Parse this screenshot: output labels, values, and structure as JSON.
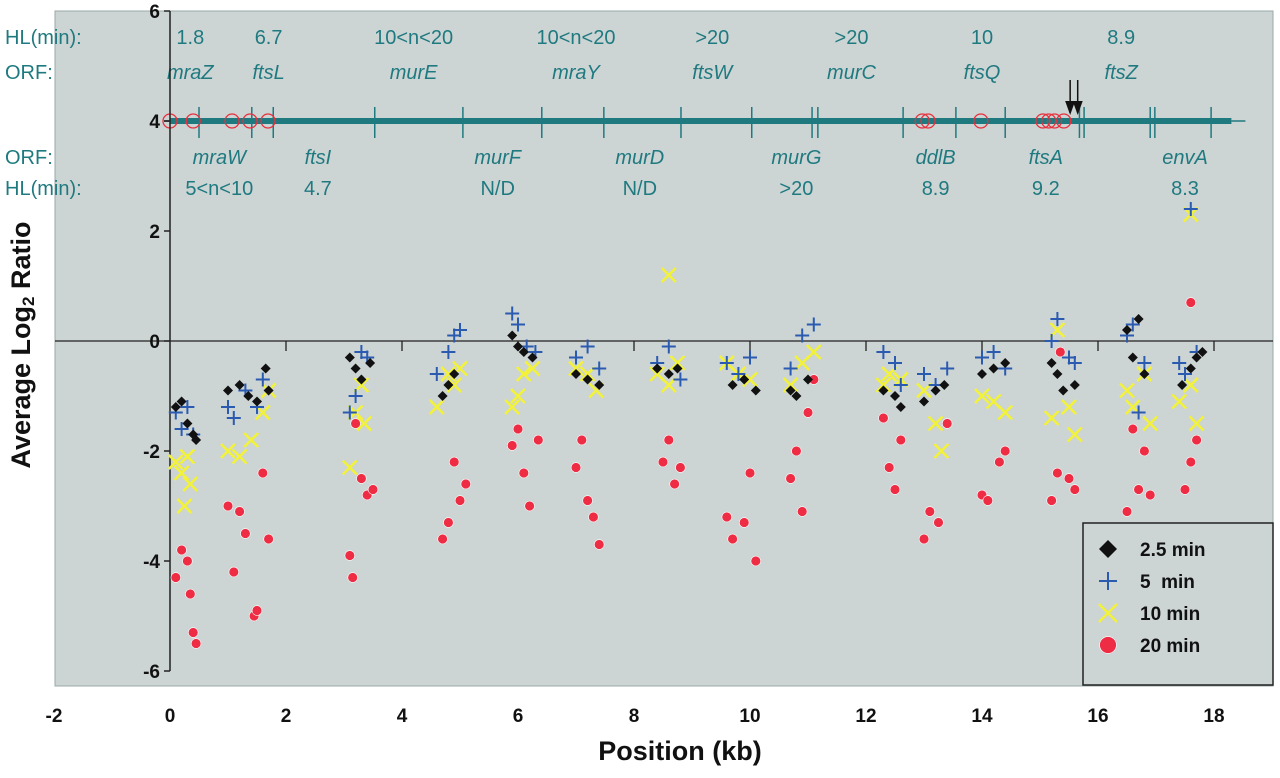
{
  "chart_data": {
    "type": "scatter",
    "xlabel": "Position (kb)",
    "ylabel": "Average Log",
    "ylabel_sub": "2",
    "ylabel_end": " Ratio",
    "xlim": [
      -2,
      18
    ],
    "ylim": [
      -6,
      6
    ],
    "xticks": [
      "-2",
      "0",
      "2",
      "4",
      "6",
      "8",
      "10",
      "12",
      "14",
      "16",
      "18"
    ],
    "xtick_values": [
      -2,
      0,
      2,
      4,
      6,
      8,
      10,
      12,
      14,
      16,
      18
    ],
    "yticks": [
      "-6",
      "-4",
      "-2",
      "0",
      "2",
      "4",
      "6"
    ],
    "ytick_values": [
      -6,
      -4,
      -2,
      0,
      2,
      4,
      6
    ],
    "grid": false,
    "legend_position": "bottom-right",
    "background": "#cdd4d4",
    "series": [
      {
        "name": "2.5 min",
        "marker": "diamond",
        "color": "#111111",
        "points": [
          [
            0.1,
            -1.2
          ],
          [
            0.2,
            -1.1
          ],
          [
            0.3,
            -1.5
          ],
          [
            0.4,
            -1.7
          ],
          [
            0.45,
            -1.8
          ],
          [
            1.0,
            -0.9
          ],
          [
            1.2,
            -0.8
          ],
          [
            1.35,
            -1.0
          ],
          [
            1.5,
            -1.1
          ],
          [
            1.65,
            -0.5
          ],
          [
            1.7,
            -0.9
          ],
          [
            3.1,
            -0.3
          ],
          [
            3.2,
            -0.5
          ],
          [
            3.3,
            -0.7
          ],
          [
            3.45,
            -0.4
          ],
          [
            4.7,
            -1.0
          ],
          [
            4.8,
            -0.8
          ],
          [
            4.9,
            -0.6
          ],
          [
            5.9,
            0.1
          ],
          [
            6.0,
            -0.1
          ],
          [
            6.1,
            -0.2
          ],
          [
            6.25,
            -0.3
          ],
          [
            7.0,
            -0.6
          ],
          [
            7.2,
            -0.7
          ],
          [
            7.4,
            -0.8
          ],
          [
            8.4,
            -0.5
          ],
          [
            8.6,
            -0.6
          ],
          [
            8.75,
            -0.5
          ],
          [
            9.7,
            -0.8
          ],
          [
            9.9,
            -0.7
          ],
          [
            10.1,
            -0.9
          ],
          [
            10.7,
            -0.9
          ],
          [
            10.8,
            -1.0
          ],
          [
            11.0,
            -0.7
          ],
          [
            12.3,
            -0.9
          ],
          [
            12.5,
            -1.0
          ],
          [
            12.6,
            -1.2
          ],
          [
            13.0,
            -1.1
          ],
          [
            13.2,
            -0.9
          ],
          [
            13.35,
            -0.8
          ],
          [
            14.0,
            -0.6
          ],
          [
            14.2,
            -0.5
          ],
          [
            14.4,
            -0.4
          ],
          [
            15.2,
            -0.4
          ],
          [
            15.3,
            -0.6
          ],
          [
            15.4,
            -0.9
          ],
          [
            15.6,
            -0.8
          ],
          [
            16.5,
            0.2
          ],
          [
            16.6,
            -0.3
          ],
          [
            16.7,
            0.4
          ],
          [
            16.8,
            -0.6
          ],
          [
            17.45,
            -0.8
          ],
          [
            17.6,
            -0.5
          ],
          [
            17.7,
            -0.3
          ],
          [
            17.8,
            -0.2
          ]
        ]
      },
      {
        "name": "5  min",
        "marker": "plus",
        "color": "#2b5bb0",
        "points": [
          [
            0.1,
            -1.3
          ],
          [
            0.2,
            -1.6
          ],
          [
            0.3,
            -1.2
          ],
          [
            0.4,
            -1.7
          ],
          [
            1.0,
            -1.2
          ],
          [
            1.1,
            -1.4
          ],
          [
            1.3,
            -0.9
          ],
          [
            1.5,
            -1.2
          ],
          [
            1.6,
            -0.7
          ],
          [
            3.1,
            -1.3
          ],
          [
            3.2,
            -1.0
          ],
          [
            3.3,
            -0.2
          ],
          [
            3.4,
            -0.3
          ],
          [
            4.6,
            -0.6
          ],
          [
            4.8,
            -0.2
          ],
          [
            4.9,
            0.1
          ],
          [
            5.0,
            0.2
          ],
          [
            5.9,
            0.5
          ],
          [
            6.0,
            0.3
          ],
          [
            6.15,
            -0.1
          ],
          [
            6.3,
            -0.2
          ],
          [
            7.0,
            -0.3
          ],
          [
            7.2,
            -0.1
          ],
          [
            7.4,
            -0.5
          ],
          [
            8.4,
            -0.4
          ],
          [
            8.6,
            -0.1
          ],
          [
            8.8,
            -0.7
          ],
          [
            9.6,
            -0.4
          ],
          [
            9.8,
            -0.6
          ],
          [
            10.0,
            -0.3
          ],
          [
            10.7,
            -0.5
          ],
          [
            10.9,
            0.1
          ],
          [
            11.1,
            0.3
          ],
          [
            12.3,
            -0.2
          ],
          [
            12.5,
            -0.4
          ],
          [
            12.6,
            -0.8
          ],
          [
            13.0,
            -0.6
          ],
          [
            13.2,
            -0.8
          ],
          [
            13.4,
            -0.5
          ],
          [
            14.0,
            -0.3
          ],
          [
            14.2,
            -0.2
          ],
          [
            14.4,
            -0.5
          ],
          [
            15.2,
            0.0
          ],
          [
            15.3,
            0.4
          ],
          [
            15.5,
            -0.3
          ],
          [
            15.6,
            -0.4
          ],
          [
            16.5,
            0.1
          ],
          [
            16.6,
            0.3
          ],
          [
            16.8,
            -0.4
          ],
          [
            16.7,
            -1.3
          ],
          [
            17.4,
            -0.4
          ],
          [
            17.5,
            -0.6
          ],
          [
            17.7,
            -0.2
          ],
          [
            17.6,
            2.4
          ]
        ]
      },
      {
        "name": "10 min",
        "marker": "x",
        "color": "#f2f23a",
        "points": [
          [
            0.1,
            -2.2
          ],
          [
            0.2,
            -2.4
          ],
          [
            0.3,
            -2.1
          ],
          [
            0.35,
            -2.6
          ],
          [
            0.25,
            -3.0
          ],
          [
            1.0,
            -2.0
          ],
          [
            1.2,
            -2.1
          ],
          [
            1.4,
            -1.8
          ],
          [
            1.6,
            -1.3
          ],
          [
            1.7,
            -0.9
          ],
          [
            3.1,
            -2.3
          ],
          [
            3.2,
            -1.3
          ],
          [
            3.35,
            -1.5
          ],
          [
            3.3,
            -0.8
          ],
          [
            4.6,
            -1.2
          ],
          [
            4.8,
            -0.6
          ],
          [
            4.9,
            -0.8
          ],
          [
            5.0,
            -0.5
          ],
          [
            5.9,
            -1.2
          ],
          [
            6.0,
            -1.0
          ],
          [
            6.1,
            -0.6
          ],
          [
            6.25,
            -0.5
          ],
          [
            7.0,
            -0.5
          ],
          [
            7.2,
            -0.6
          ],
          [
            7.35,
            -0.9
          ],
          [
            8.4,
            -0.6
          ],
          [
            8.6,
            -0.8
          ],
          [
            8.75,
            -0.4
          ],
          [
            8.6,
            1.2
          ],
          [
            9.6,
            -0.4
          ],
          [
            9.8,
            -0.6
          ],
          [
            10.0,
            -0.7
          ],
          [
            10.7,
            -0.8
          ],
          [
            10.9,
            -0.4
          ],
          [
            11.1,
            -0.2
          ],
          [
            12.3,
            -0.8
          ],
          [
            12.4,
            -0.6
          ],
          [
            12.6,
            -0.7
          ],
          [
            13.0,
            -0.9
          ],
          [
            13.2,
            -1.5
          ],
          [
            13.3,
            -2.0
          ],
          [
            14.0,
            -1.0
          ],
          [
            14.2,
            -1.1
          ],
          [
            14.4,
            -1.3
          ],
          [
            15.2,
            -1.4
          ],
          [
            15.3,
            0.2
          ],
          [
            15.5,
            -1.2
          ],
          [
            15.6,
            -1.7
          ],
          [
            16.5,
            -0.9
          ],
          [
            16.6,
            -1.2
          ],
          [
            16.8,
            -0.6
          ],
          [
            16.9,
            -1.5
          ],
          [
            17.4,
            -1.1
          ],
          [
            17.6,
            -0.8
          ],
          [
            17.7,
            -1.5
          ],
          [
            17.6,
            2.3
          ]
        ]
      },
      {
        "name": "20 min",
        "marker": "circle",
        "color": "#ee2d44",
        "points": [
          [
            0.1,
            -4.3
          ],
          [
            0.2,
            -3.8
          ],
          [
            0.3,
            -4.0
          ],
          [
            0.35,
            -4.6
          ],
          [
            0.4,
            -5.3
          ],
          [
            0.45,
            -5.5
          ],
          [
            1.0,
            -3.0
          ],
          [
            1.1,
            -4.2
          ],
          [
            1.2,
            -3.1
          ],
          [
            1.3,
            -3.5
          ],
          [
            1.45,
            -5.0
          ],
          [
            1.5,
            -4.9
          ],
          [
            1.6,
            -2.4
          ],
          [
            1.7,
            -3.6
          ],
          [
            3.1,
            -3.9
          ],
          [
            3.15,
            -4.3
          ],
          [
            3.2,
            -1.5
          ],
          [
            3.3,
            -2.5
          ],
          [
            3.4,
            -2.8
          ],
          [
            3.5,
            -2.7
          ],
          [
            4.7,
            -3.6
          ],
          [
            4.8,
            -3.3
          ],
          [
            4.9,
            -2.2
          ],
          [
            5.0,
            -2.9
          ],
          [
            5.1,
            -2.6
          ],
          [
            5.9,
            -1.9
          ],
          [
            6.0,
            -1.6
          ],
          [
            6.1,
            -2.4
          ],
          [
            6.2,
            -3.0
          ],
          [
            6.35,
            -1.8
          ],
          [
            7.0,
            -2.3
          ],
          [
            7.1,
            -1.8
          ],
          [
            7.2,
            -2.9
          ],
          [
            7.3,
            -3.2
          ],
          [
            7.4,
            -3.7
          ],
          [
            8.5,
            -2.2
          ],
          [
            8.6,
            -1.8
          ],
          [
            8.7,
            -2.6
          ],
          [
            8.8,
            -2.3
          ],
          [
            9.6,
            -3.2
          ],
          [
            9.7,
            -3.6
          ],
          [
            9.9,
            -3.3
          ],
          [
            10.0,
            -2.4
          ],
          [
            10.1,
            -4.0
          ],
          [
            10.7,
            -2.5
          ],
          [
            10.8,
            -2.0
          ],
          [
            10.9,
            -3.1
          ],
          [
            11.0,
            -1.3
          ],
          [
            11.1,
            -0.7
          ],
          [
            12.3,
            -1.4
          ],
          [
            12.4,
            -2.3
          ],
          [
            12.5,
            -2.7
          ],
          [
            12.6,
            -1.8
          ],
          [
            13.0,
            -3.6
          ],
          [
            13.1,
            -3.1
          ],
          [
            13.25,
            -3.3
          ],
          [
            13.4,
            -1.5
          ],
          [
            14.0,
            -2.8
          ],
          [
            14.1,
            -2.9
          ],
          [
            14.3,
            -2.2
          ],
          [
            14.4,
            -2.0
          ],
          [
            15.2,
            -2.9
          ],
          [
            15.3,
            -2.4
          ],
          [
            15.35,
            -0.2
          ],
          [
            15.5,
            -2.5
          ],
          [
            15.6,
            -2.7
          ],
          [
            16.5,
            -3.1
          ],
          [
            16.6,
            -1.6
          ],
          [
            16.7,
            -2.7
          ],
          [
            16.8,
            -2.0
          ],
          [
            16.9,
            -2.8
          ],
          [
            17.5,
            -2.7
          ],
          [
            17.6,
            -2.2
          ],
          [
            17.7,
            -1.8
          ],
          [
            17.6,
            0.7
          ]
        ]
      }
    ],
    "gene_map": {
      "axis_value": 4,
      "extent": [
        0,
        18.3
      ],
      "boundaries": [
        0.5,
        1.41,
        1.78,
        3.53,
        5.05,
        6.41,
        7.48,
        8.81,
        10.03,
        11.07,
        11.17,
        12.64,
        13.55,
        14.4,
        15.68,
        15.76,
        16.9,
        16.98,
        17.95
      ],
      "red_circles": [
        0,
        0.4,
        1.07,
        1.38,
        1.69,
        12.97,
        13.07,
        13.98,
        15.05,
        15.15,
        15.25,
        15.41
      ],
      "arrows": [
        15.52,
        15.65
      ],
      "row_label_hl": "HL(min):",
      "row_label_orf": "ORF:",
      "top_genes": [
        {
          "orf": "mraZ",
          "hl": "1.8",
          "x": 0.35
        },
        {
          "orf": "ftsL",
          "hl": "6.7",
          "x": 1.7
        },
        {
          "orf": "murE",
          "hl": "10<n<20",
          "x": 4.2
        },
        {
          "orf": "mraY",
          "hl": "10<n<20",
          "x": 7.0
        },
        {
          "orf": "ftsW",
          "hl": ">20",
          "x": 9.35
        },
        {
          "orf": "murC",
          "hl": ">20",
          "x": 11.75
        },
        {
          "orf": "ftsQ",
          "hl": "10",
          "x": 14.0
        },
        {
          "orf": "ftsZ",
          "hl": "8.9",
          "x": 16.4
        }
      ],
      "bottom_genes": [
        {
          "orf": "mraW",
          "hl": "5<n<10",
          "x": 0.85
        },
        {
          "orf": "ftsI",
          "hl": "4.7",
          "x": 2.55
        },
        {
          "orf": "murF",
          "hl": "N/D",
          "x": 5.65
        },
        {
          "orf": "murD",
          "hl": "N/D",
          "x": 8.1
        },
        {
          "orf": "murG",
          "hl": ">20",
          "x": 10.8
        },
        {
          "orf": "ddlB",
          "hl": "8.9",
          "x": 13.2
        },
        {
          "orf": "ftsA",
          "hl": "9.2",
          "x": 15.1
        },
        {
          "orf": "envA",
          "hl": "8.3",
          "x": 17.5
        }
      ],
      "color": "#1f7a80"
    }
  }
}
